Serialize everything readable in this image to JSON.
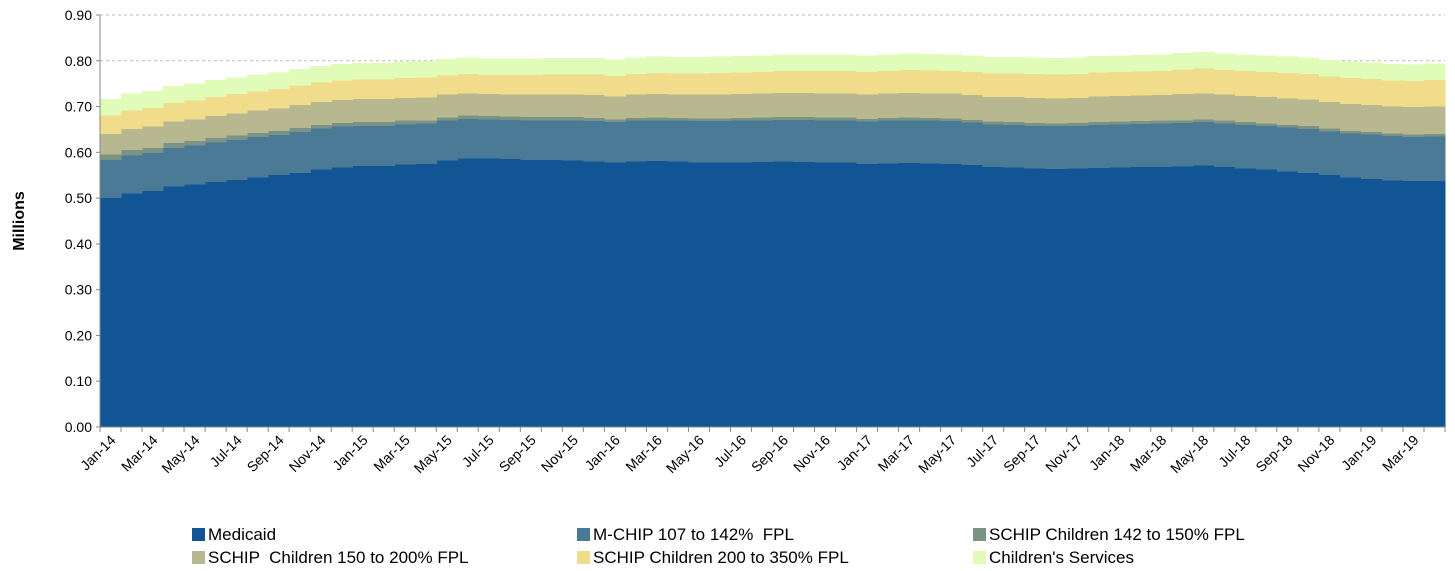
{
  "chart_data": {
    "type": "stacked-area-step",
    "y_label": "Millions",
    "categories": [
      "Jan-14",
      null,
      "Mar-14",
      null,
      "May-14",
      null,
      "Jul-14",
      null,
      "Sep-14",
      null,
      "Nov-14",
      null,
      "Jan-15",
      null,
      "Mar-15",
      null,
      "May-15",
      null,
      "Jul-15",
      null,
      "Sep-15",
      null,
      "Nov-15",
      null,
      "Jan-16",
      null,
      "Mar-16",
      null,
      "May-16",
      null,
      "Jul-16",
      null,
      "Sep-16",
      null,
      "Nov-16",
      null,
      "Jan-17",
      null,
      "Mar-17",
      null,
      "May-17",
      null,
      "Jul-17",
      null,
      "Sep-17",
      null,
      "Nov-17",
      null,
      "Jan-18",
      null,
      "Mar-18",
      null,
      "May-18",
      null,
      "Jul-18",
      null,
      "Sep-18",
      null,
      "Nov-18",
      null,
      "Jan-19",
      null,
      "Mar-19",
      null
    ],
    "series": [
      {
        "name": "Medicaid",
        "color": "#125594",
        "values": [
          0.5,
          0.51,
          0.515,
          0.525,
          0.53,
          0.535,
          0.54,
          0.545,
          0.55,
          0.555,
          0.563,
          0.567,
          0.57,
          0.57,
          0.573,
          0.575,
          0.582,
          0.587,
          0.587,
          0.585,
          0.583,
          0.583,
          0.582,
          0.58,
          0.578,
          0.58,
          0.581,
          0.58,
          0.578,
          0.578,
          0.578,
          0.579,
          0.58,
          0.579,
          0.578,
          0.578,
          0.575,
          0.576,
          0.577,
          0.576,
          0.575,
          0.572,
          0.568,
          0.567,
          0.565,
          0.564,
          0.565,
          0.566,
          0.567,
          0.568,
          0.568,
          0.569,
          0.571,
          0.568,
          0.565,
          0.562,
          0.558,
          0.555,
          0.55,
          0.545,
          0.542,
          0.539,
          0.537,
          0.537
        ]
      },
      {
        "name": "M-CHIP 107 to 142%  FPL",
        "color": "#4a7a96",
        "values": [
          0.083,
          0.083,
          0.084,
          0.084,
          0.085,
          0.086,
          0.087,
          0.088,
          0.088,
          0.089,
          0.089,
          0.089,
          0.088,
          0.088,
          0.088,
          0.088,
          0.087,
          0.086,
          0.085,
          0.086,
          0.087,
          0.087,
          0.088,
          0.088,
          0.088,
          0.089,
          0.089,
          0.089,
          0.09,
          0.09,
          0.091,
          0.091,
          0.091,
          0.092,
          0.092,
          0.092,
          0.092,
          0.093,
          0.093,
          0.093,
          0.093,
          0.093,
          0.093,
          0.093,
          0.093,
          0.093,
          0.093,
          0.094,
          0.094,
          0.094,
          0.095,
          0.095,
          0.095,
          0.095,
          0.095,
          0.095,
          0.096,
          0.096,
          0.096,
          0.096,
          0.097,
          0.097,
          0.097,
          0.098
        ]
      },
      {
        "name": "SCHIP Children 142 to 150% FPL",
        "color": "#7a9384",
        "values": [
          0.012,
          0.012,
          0.011,
          0.011,
          0.01,
          0.01,
          0.01,
          0.009,
          0.009,
          0.009,
          0.008,
          0.008,
          0.008,
          0.008,
          0.008,
          0.007,
          0.007,
          0.007,
          0.007,
          0.007,
          0.007,
          0.007,
          0.007,
          0.007,
          0.006,
          0.006,
          0.006,
          0.006,
          0.006,
          0.006,
          0.006,
          0.006,
          0.006,
          0.006,
          0.006,
          0.006,
          0.006,
          0.006,
          0.006,
          0.006,
          0.006,
          0.006,
          0.006,
          0.006,
          0.006,
          0.006,
          0.006,
          0.006,
          0.006,
          0.006,
          0.006,
          0.006,
          0.006,
          0.006,
          0.006,
          0.006,
          0.006,
          0.006,
          0.006,
          0.006,
          0.005,
          0.005,
          0.005,
          0.005
        ]
      },
      {
        "name": "SCHIP  Children 150 to 200% FPL",
        "color": "#b7b88f",
        "values": [
          0.045,
          0.046,
          0.046,
          0.047,
          0.047,
          0.048,
          0.048,
          0.049,
          0.049,
          0.05,
          0.05,
          0.05,
          0.05,
          0.05,
          0.05,
          0.05,
          0.05,
          0.049,
          0.048,
          0.048,
          0.049,
          0.049,
          0.049,
          0.05,
          0.05,
          0.051,
          0.051,
          0.051,
          0.052,
          0.052,
          0.052,
          0.052,
          0.053,
          0.053,
          0.053,
          0.053,
          0.053,
          0.053,
          0.054,
          0.054,
          0.054,
          0.054,
          0.054,
          0.055,
          0.055,
          0.055,
          0.055,
          0.056,
          0.056,
          0.056,
          0.056,
          0.057,
          0.057,
          0.057,
          0.057,
          0.058,
          0.058,
          0.058,
          0.058,
          0.059,
          0.059,
          0.059,
          0.06,
          0.06
        ]
      },
      {
        "name": "SCHIP Children 200 to 350% FPL",
        "color": "#f0dc8a",
        "values": [
          0.04,
          0.04,
          0.041,
          0.041,
          0.041,
          0.042,
          0.042,
          0.042,
          0.042,
          0.043,
          0.043,
          0.043,
          0.043,
          0.043,
          0.043,
          0.043,
          0.042,
          0.042,
          0.042,
          0.043,
          0.043,
          0.044,
          0.044,
          0.045,
          0.045,
          0.045,
          0.046,
          0.046,
          0.046,
          0.047,
          0.047,
          0.048,
          0.048,
          0.048,
          0.049,
          0.049,
          0.049,
          0.05,
          0.05,
          0.05,
          0.05,
          0.051,
          0.051,
          0.051,
          0.052,
          0.052,
          0.052,
          0.052,
          0.053,
          0.053,
          0.053,
          0.054,
          0.054,
          0.054,
          0.055,
          0.055,
          0.055,
          0.056,
          0.056,
          0.056,
          0.057,
          0.057,
          0.057,
          0.058
        ]
      },
      {
        "name": "Children's Services",
        "color": "#e0fcb8",
        "values": [
          0.037,
          0.037,
          0.037,
          0.037,
          0.037,
          0.037,
          0.037,
          0.037,
          0.036,
          0.036,
          0.036,
          0.036,
          0.036,
          0.036,
          0.036,
          0.036,
          0.036,
          0.036,
          0.036,
          0.036,
          0.036,
          0.036,
          0.036,
          0.036,
          0.036,
          0.036,
          0.036,
          0.036,
          0.036,
          0.036,
          0.036,
          0.036,
          0.036,
          0.036,
          0.036,
          0.036,
          0.036,
          0.036,
          0.036,
          0.036,
          0.036,
          0.036,
          0.036,
          0.036,
          0.036,
          0.036,
          0.036,
          0.036,
          0.036,
          0.036,
          0.036,
          0.036,
          0.036,
          0.036,
          0.036,
          0.036,
          0.036,
          0.036,
          0.036,
          0.036,
          0.036,
          0.036,
          0.036,
          0.036
        ]
      }
    ],
    "ylim": [
      0,
      0.9
    ],
    "yticks": [
      {
        "value": 0,
        "label": "0.00"
      },
      {
        "value": 0.1,
        "label": "0.10"
      },
      {
        "value": 0.2,
        "label": "0.20"
      },
      {
        "value": 0.3,
        "label": "0.30"
      },
      {
        "value": 0.4,
        "label": "0.40"
      },
      {
        "value": 0.5,
        "label": "0.50"
      },
      {
        "value": 0.6,
        "label": "0.60"
      },
      {
        "value": 0.7,
        "label": "0.70"
      },
      {
        "value": 0.8,
        "label": "0.80"
      },
      {
        "value": 0.9,
        "label": "0.90"
      }
    ],
    "grid": true
  }
}
